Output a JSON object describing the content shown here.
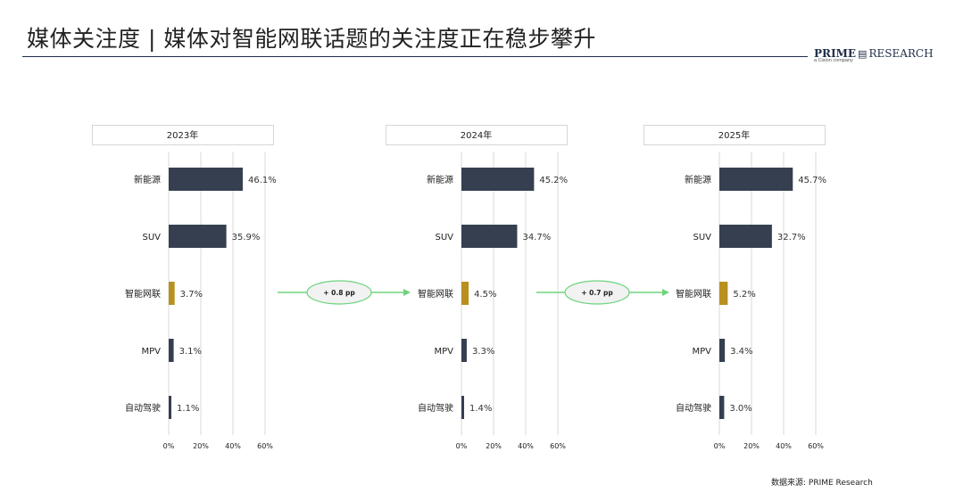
{
  "header": {
    "title": "媒体关注度 | 媒体对智能网联话题的关注度正在稳步攀升"
  },
  "logo": {
    "brand_bold": "PRIME",
    "brand_rest": "RESEARCH",
    "tagline": "a Cision company"
  },
  "footer": {
    "source": "数据来源: PRIME Research"
  },
  "colors": {
    "bar_default": "#353f50",
    "bar_highlight": "#b8901e",
    "arrow": "#6dd37c",
    "grid": "#d9d9d9"
  },
  "chart_data": [
    {
      "type": "bar",
      "orientation": "horizontal",
      "title": "2023年",
      "categories": [
        "新能源",
        "SUV",
        "智能网联",
        "MPV",
        "自动驾驶"
      ],
      "values": [
        46.1,
        35.9,
        3.7,
        3.1,
        1.1
      ],
      "value_labels": [
        "46.1%",
        "35.9%",
        "3.7%",
        "3.1%",
        "1.1%"
      ],
      "highlight_index": 2,
      "xlim": [
        0,
        60
      ],
      "xticks": [
        "0%",
        "20%",
        "40%",
        "60%"
      ],
      "grid": true
    },
    {
      "type": "bar",
      "orientation": "horizontal",
      "title": "2024年",
      "categories": [
        "新能源",
        "SUV",
        "智能网联",
        "MPV",
        "自动驾驶"
      ],
      "values": [
        45.2,
        34.7,
        4.5,
        3.3,
        1.4
      ],
      "value_labels": [
        "45.2%",
        "34.7%",
        "4.5%",
        "3.3%",
        "1.4%"
      ],
      "highlight_index": 2,
      "xlim": [
        0,
        60
      ],
      "xticks": [
        "0%",
        "20%",
        "40%",
        "60%"
      ],
      "grid": true
    },
    {
      "type": "bar",
      "orientation": "horizontal",
      "title": "2025年",
      "categories": [
        "新能源",
        "SUV",
        "智能网联",
        "MPV",
        "自动驾驶"
      ],
      "values": [
        45.7,
        32.7,
        5.2,
        3.4,
        3.0
      ],
      "value_labels": [
        "45.7%",
        "32.7%",
        "5.2%",
        "3.4%",
        "3.0%"
      ],
      "highlight_index": 2,
      "xlim": [
        0,
        60
      ],
      "xticks": [
        "0%",
        "20%",
        "40%",
        "60%"
      ],
      "grid": true
    }
  ],
  "annotations": [
    {
      "label": "+ 0.8 pp"
    },
    {
      "label": "+ 0.7 pp"
    }
  ]
}
